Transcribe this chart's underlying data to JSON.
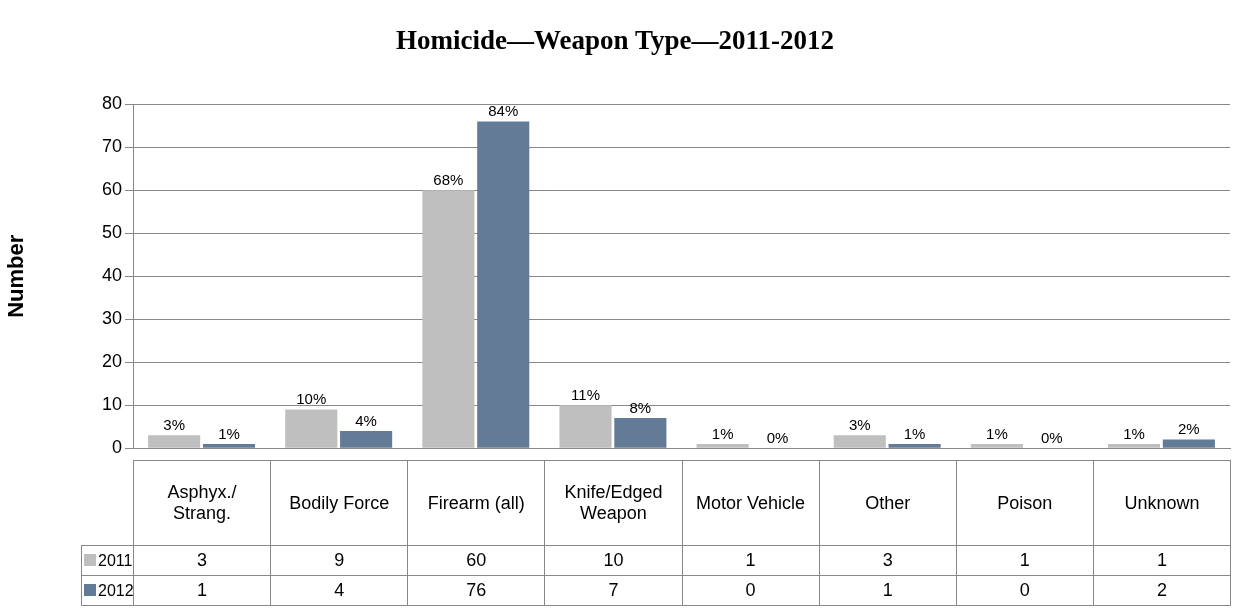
{
  "chart_data": {
    "type": "bar",
    "title": "Homicide—Weapon Type—2011-2012",
    "ylabel": "Number",
    "categories": [
      "Asphyx./ Strang.",
      "Bodily Force",
      "Firearm (all)",
      "Knife/Edged Weapon",
      "Motor Vehicle",
      "Other",
      "Poison",
      "Unknown"
    ],
    "series": [
      {
        "name": "2011",
        "color": "#bfbfbf",
        "values": [
          3,
          9,
          60,
          10,
          1,
          3,
          1,
          1
        ]
      },
      {
        "name": "2012",
        "color": "#647b97",
        "values": [
          1,
          4,
          76,
          7,
          0,
          1,
          0,
          2
        ]
      }
    ],
    "annotations": [
      {
        "text": "3%",
        "x": "Asphyx./ Strang.",
        "y": 3
      },
      {
        "text": "1%",
        "x": "Asphyx./ Strang.",
        "y": 1
      },
      {
        "text": "10%",
        "x": "Bodily Force",
        "y": 9
      },
      {
        "text": "4%",
        "x": "Bodily Force",
        "y": 4
      },
      {
        "text": "68%",
        "x": "Firearm (all)",
        "y": 60
      },
      {
        "text": "84%",
        "x": "Firearm (all)",
        "y": 76
      },
      {
        "text": "11%",
        "x": "Knife/Edged Weapon",
        "y": 10
      },
      {
        "text": "8%",
        "x": "Knife/Edged Weapon",
        "y": 7
      },
      {
        "text": "1%",
        "x": "Motor Vehicle",
        "y": 1
      },
      {
        "text": "0%",
        "x": "Motor Vehicle",
        "y": 0
      },
      {
        "text": "3%",
        "x": "Other",
        "y": 3
      },
      {
        "text": "1%",
        "x": "Other",
        "y": 1
      },
      {
        "text": "1%",
        "x": "Poison",
        "y": 1
      },
      {
        "text": "0%",
        "x": "Poison",
        "y": 0
      },
      {
        "text": "1%",
        "x": "Unknown",
        "y": 1
      },
      {
        "text": "2%",
        "x": "Unknown",
        "y": 2
      }
    ],
    "ylim": [
      0,
      80
    ],
    "yticks": [
      0,
      10,
      20,
      30,
      40,
      50,
      60,
      70,
      80
    ],
    "grid": "y",
    "legend": "bottom",
    "data_labels": true
  }
}
